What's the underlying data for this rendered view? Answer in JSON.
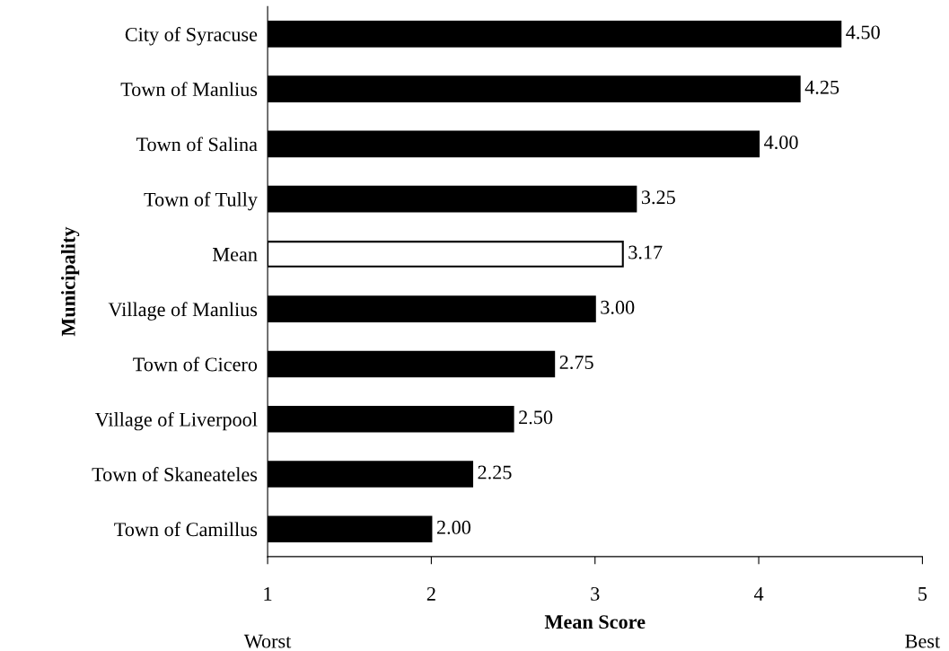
{
  "chart_data": {
    "type": "bar",
    "orientation": "horizontal",
    "categories": [
      "City of Syracuse",
      "Town of Manlius",
      "Town of Salina",
      "Town of Tully",
      "Mean",
      "Village of Manlius",
      "Town of Cicero",
      "Village of Liverpool",
      "Town of Skaneateles",
      "Town of Camillus"
    ],
    "values": [
      4.5,
      4.25,
      4.0,
      3.25,
      3.17,
      3.0,
      2.75,
      2.5,
      2.25,
      2.0
    ],
    "colors": [
      "#000000",
      "#000000",
      "#000000",
      "#000000",
      "#ffffff",
      "#000000",
      "#000000",
      "#000000",
      "#000000",
      "#000000"
    ],
    "value_labels": [
      "4.50",
      "4.25",
      "4.00",
      "3.25",
      "3.17",
      "3.00",
      "2.75",
      "2.50",
      "2.25",
      "2.00"
    ],
    "xlim": [
      1,
      5
    ],
    "xticks": [
      1,
      2,
      3,
      4,
      5
    ],
    "xlabel": "Mean Score",
    "ylabel": "Municipality",
    "annotations": [
      "Worst",
      "Best"
    ],
    "grid": false,
    "legend": false
  }
}
